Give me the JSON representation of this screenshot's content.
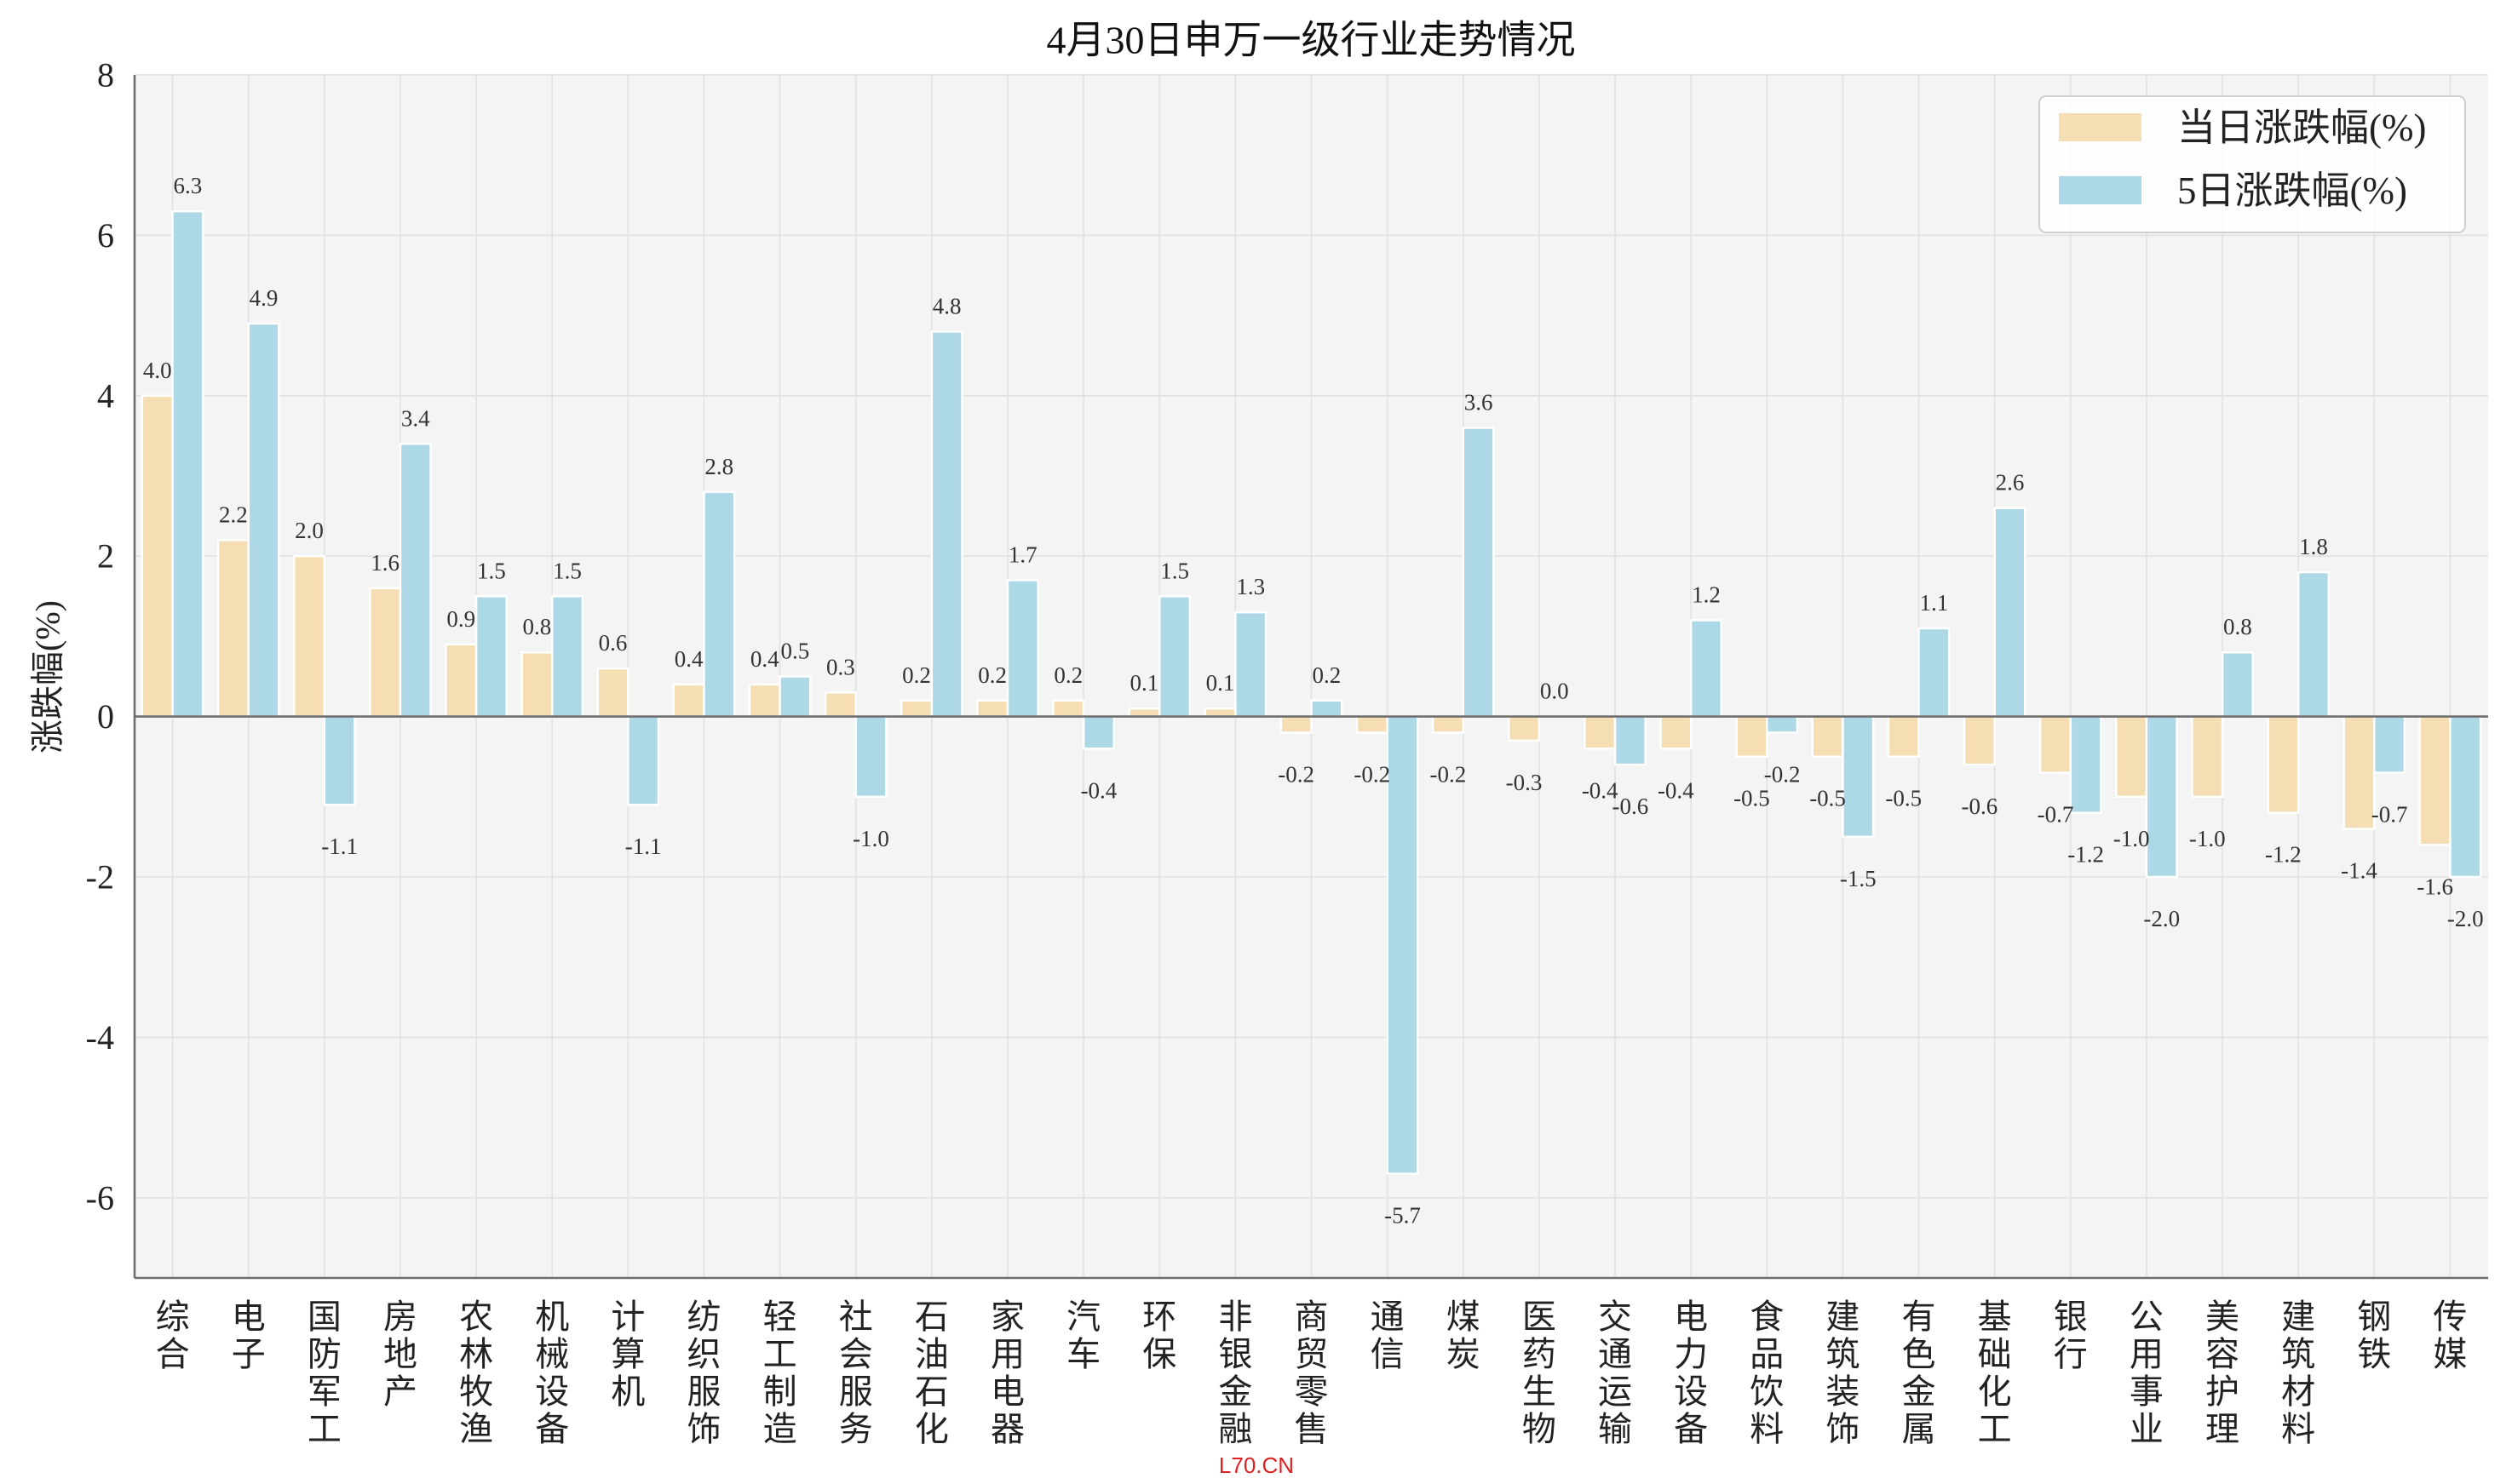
{
  "chart_data": {
    "type": "bar",
    "title": "4月30日申万一级行业走势情况",
    "ylabel": "涨跌幅(%)",
    "ylim": [
      -7,
      8
    ],
    "yticks": [
      8,
      6,
      4,
      2,
      0,
      -2,
      -4,
      -6
    ],
    "grid": true,
    "legend": "top-right",
    "categories": [
      "综合",
      "电子",
      "国防军工",
      "房地产",
      "农林牧渔",
      "机械设备",
      "计算机",
      "纺织服饰",
      "轻工制造",
      "社会服务",
      "石油石化",
      "家用电器",
      "汽车",
      "环保",
      "非银金融",
      "商贸零售",
      "通信",
      "煤炭",
      "医药生物",
      "交通运输",
      "电力设备",
      "食品饮料",
      "建筑装饰",
      "有色金属",
      "基础化工",
      "银行",
      "公用事业",
      "美容护理",
      "建筑材料",
      "钢铁",
      "传媒"
    ],
    "series": [
      {
        "name": "当日涨跌幅(%)",
        "color": "#F5DEB3",
        "values": [
          4.0,
          2.2,
          2.0,
          1.6,
          0.9,
          0.8,
          0.6,
          0.4,
          0.4,
          0.3,
          0.2,
          0.2,
          0.2,
          0.1,
          0.1,
          -0.2,
          -0.2,
          -0.2,
          -0.3,
          -0.4,
          -0.4,
          -0.5,
          -0.5,
          -0.5,
          -0.6,
          -0.7,
          -1.0,
          -1.0,
          -1.2,
          -1.4,
          -1.6
        ]
      },
      {
        "name": "5日涨跌幅(%)",
        "color": "#ADD8E6",
        "values": [
          6.3,
          4.9,
          -1.1,
          3.4,
          1.5,
          1.5,
          -1.1,
          2.8,
          0.5,
          -1.0,
          4.8,
          1.7,
          -0.4,
          1.5,
          1.3,
          0.2,
          -5.7,
          3.6,
          0.0,
          -0.6,
          1.2,
          -0.2,
          -1.5,
          1.1,
          2.6,
          -1.2,
          -2.0,
          0.8,
          1.8,
          -0.7,
          -2.0
        ]
      }
    ]
  },
  "watermark": {
    "text": "L70.CN",
    "color": "#E02020"
  }
}
